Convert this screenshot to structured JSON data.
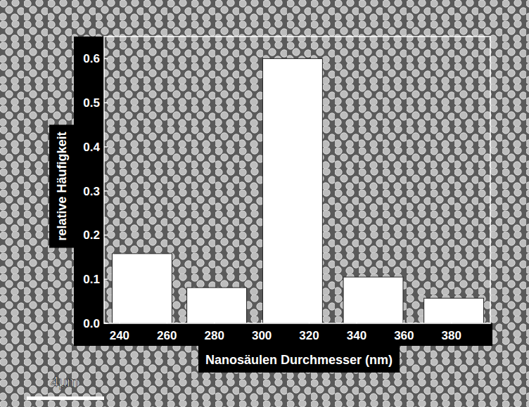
{
  "chart_data": {
    "type": "bar",
    "x_label": "Nanosäulen Durchmesser (nm)",
    "y_label": "relative Häufigkeit",
    "x": [
      249.5,
      281,
      313,
      347,
      381
    ],
    "values": [
      0.158,
      0.081,
      0.6,
      0.105,
      0.057
    ],
    "color": "#ffffff",
    "xlim": [
      233.5,
      396.4
    ],
    "xticks": [
      240,
      260,
      280,
      300,
      320,
      340,
      360,
      380
    ],
    "ylim": [
      0,
      0.65
    ],
    "yticks": [
      {
        "value": 0,
        "label": "0.0"
      },
      0.1,
      0.2,
      0.3,
      0.4,
      0.5,
      0.6
    ],
    "grid": false,
    "annotations": [
      "4µm"
    ]
  }
}
